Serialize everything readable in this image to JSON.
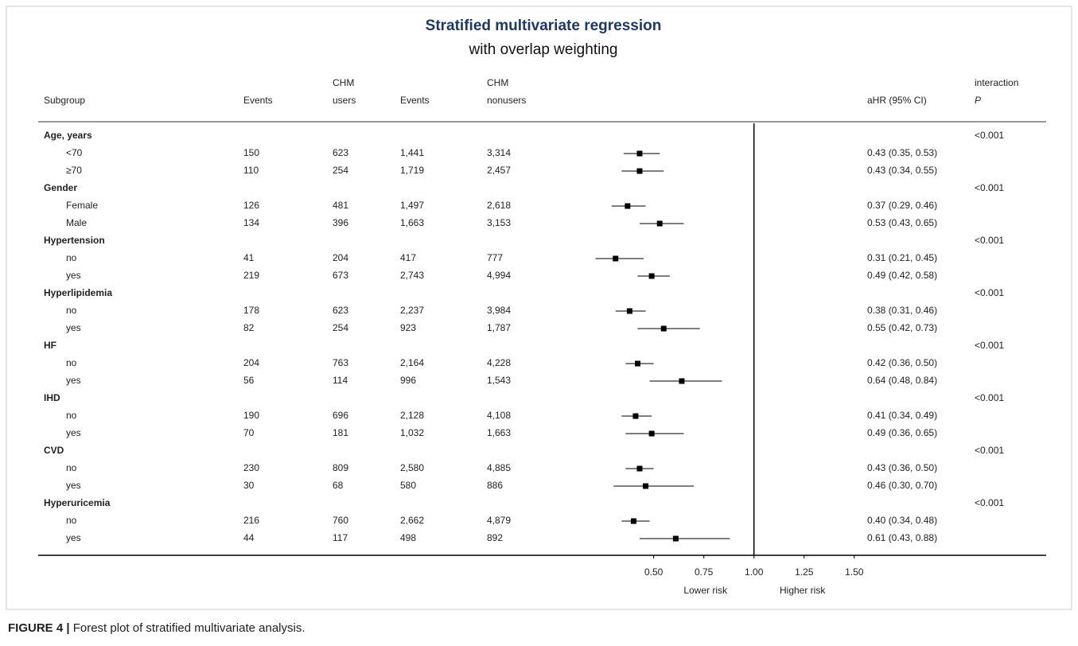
{
  "chart_data": {
    "type": "forest",
    "title": "Stratified multivariate regression",
    "subtitle": "with overlap weighting",
    "headers": [
      [
        "Subgroup"
      ],
      [
        "Events"
      ],
      [
        "CHM",
        "users"
      ],
      [
        "Events"
      ],
      [
        "CHM",
        "nonusers"
      ],
      [
        "aHR (95% CI)"
      ],
      [
        "interaction",
        "P"
      ]
    ],
    "groups": [
      {
        "name": "Age, years",
        "p": "<0.001",
        "rows": [
          {
            "label": "<70",
            "events_users": "150",
            "users": "623",
            "events_nonusers": "1,441",
            "nonusers": "3,314",
            "hr": 0.43,
            "lo": 0.35,
            "hi": 0.53,
            "ci_label": "0.43 (0.35, 0.53)"
          },
          {
            "label": "≥70",
            "events_users": "110",
            "users": "254",
            "events_nonusers": "1,719",
            "nonusers": "2,457",
            "hr": 0.43,
            "lo": 0.34,
            "hi": 0.55,
            "ci_label": "0.43 (0.34, 0.55)"
          }
        ]
      },
      {
        "name": "Gender",
        "p": "<0.001",
        "rows": [
          {
            "label": "Female",
            "events_users": "126",
            "users": "481",
            "events_nonusers": "1,497",
            "nonusers": "2,618",
            "hr": 0.37,
            "lo": 0.29,
            "hi": 0.46,
            "ci_label": "0.37 (0.29, 0.46)"
          },
          {
            "label": "Male",
            "events_users": "134",
            "users": "396",
            "events_nonusers": "1,663",
            "nonusers": "3,153",
            "hr": 0.53,
            "lo": 0.43,
            "hi": 0.65,
            "ci_label": "0.53 (0.43, 0.65)"
          }
        ]
      },
      {
        "name": "Hypertension",
        "p": "<0.001",
        "rows": [
          {
            "label": "no",
            "events_users": "41",
            "users": "204",
            "events_nonusers": "417",
            "nonusers": "777",
            "hr": 0.31,
            "lo": 0.21,
            "hi": 0.45,
            "ci_label": "0.31 (0.21, 0.45)"
          },
          {
            "label": "yes",
            "events_users": "219",
            "users": "673",
            "events_nonusers": "2,743",
            "nonusers": "4,994",
            "hr": 0.49,
            "lo": 0.42,
            "hi": 0.58,
            "ci_label": "0.49 (0.42, 0.58)"
          }
        ]
      },
      {
        "name": "Hyperlipidemia",
        "p": "<0.001",
        "rows": [
          {
            "label": "no",
            "events_users": "178",
            "users": "623",
            "events_nonusers": "2,237",
            "nonusers": "3,984",
            "hr": 0.38,
            "lo": 0.31,
            "hi": 0.46,
            "ci_label": "0.38 (0.31, 0.46)"
          },
          {
            "label": "yes",
            "events_users": "82",
            "users": "254",
            "events_nonusers": "923",
            "nonusers": "1,787",
            "hr": 0.55,
            "lo": 0.42,
            "hi": 0.73,
            "ci_label": "0.55 (0.42, 0.73)"
          }
        ]
      },
      {
        "name": "HF",
        "p": "<0.001",
        "rows": [
          {
            "label": "no",
            "events_users": "204",
            "users": "763",
            "events_nonusers": "2,164",
            "nonusers": "4,228",
            "hr": 0.42,
            "lo": 0.36,
            "hi": 0.5,
            "ci_label": "0.42 (0.36, 0.50)"
          },
          {
            "label": "yes",
            "events_users": "56",
            "users": "114",
            "events_nonusers": "996",
            "nonusers": "1,543",
            "hr": 0.64,
            "lo": 0.48,
            "hi": 0.84,
            "ci_label": "0.64 (0.48, 0.84)"
          }
        ]
      },
      {
        "name": "IHD",
        "p": "<0.001",
        "rows": [
          {
            "label": "no",
            "events_users": "190",
            "users": "696",
            "events_nonusers": "2,128",
            "nonusers": "4,108",
            "hr": 0.41,
            "lo": 0.34,
            "hi": 0.49,
            "ci_label": "0.41 (0.34, 0.49)"
          },
          {
            "label": "yes",
            "events_users": "70",
            "users": "181",
            "events_nonusers": "1,032",
            "nonusers": "1,663",
            "hr": 0.49,
            "lo": 0.36,
            "hi": 0.65,
            "ci_label": "0.49 (0.36, 0.65)"
          }
        ]
      },
      {
        "name": "CVD",
        "p": "<0.001",
        "rows": [
          {
            "label": "no",
            "events_users": "230",
            "users": "809",
            "events_nonusers": "2,580",
            "nonusers": "4,885",
            "hr": 0.43,
            "lo": 0.36,
            "hi": 0.5,
            "ci_label": "0.43 (0.36, 0.50)"
          },
          {
            "label": "yes",
            "events_users": "30",
            "users": "68",
            "events_nonusers": "580",
            "nonusers": "886",
            "hr": 0.46,
            "lo": 0.3,
            "hi": 0.7,
            "ci_label": "0.46 (0.30, 0.70)"
          }
        ]
      },
      {
        "name": "Hyperuricemia",
        "p": "<0.001",
        "rows": [
          {
            "label": "no",
            "events_users": "216",
            "users": "760",
            "events_nonusers": "2,662",
            "nonusers": "4,879",
            "hr": 0.4,
            "lo": 0.34,
            "hi": 0.48,
            "ci_label": "0.40 (0.34, 0.48)"
          },
          {
            "label": "yes",
            "events_users": "44",
            "users": "117",
            "events_nonusers": "498",
            "nonusers": "892",
            "hr": 0.61,
            "lo": 0.43,
            "hi": 0.88,
            "ci_label": "0.61 (0.43, 0.88)"
          }
        ]
      }
    ],
    "xlim": [
      0.2,
      1.6
    ],
    "xticks": [
      {
        "value": 0.5,
        "label": "0.50"
      },
      {
        "value": 0.75,
        "label": "0.75"
      },
      {
        "value": 1,
        "label": "1.00"
      },
      {
        "value": 1.25,
        "label": "1.25"
      },
      {
        "value": 1.5,
        "label": "1.50"
      }
    ],
    "reference": 1,
    "annotations": [
      "Lower risk",
      "Higher risk"
    ],
    "marker_color": "#000000",
    "ci_color": "#555555"
  },
  "caption": {
    "label": "FIGURE 4 |",
    "text": "Forest plot of stratified multivariate analysis."
  }
}
